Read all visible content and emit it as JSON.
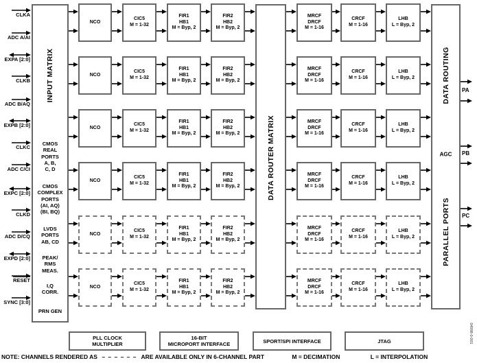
{
  "figure_code": "04998-0-001",
  "left_ports": [
    {
      "label": "CLKA",
      "dir": "in"
    },
    {
      "label": "ADC A/AI",
      "dir": "in"
    },
    {
      "label": "EXPA [2:0]",
      "dir": "bidir"
    },
    {
      "label": "CLKB",
      "dir": "in"
    },
    {
      "label": "ADC B/AQ",
      "dir": "in"
    },
    {
      "label": "EXPB [2:0]",
      "dir": "bidir"
    },
    {
      "label": "CLKC",
      "dir": "in"
    },
    {
      "label": "ADC C/CI",
      "dir": "in"
    },
    {
      "label": "EXPC [2:0]",
      "dir": "bidir"
    },
    {
      "label": "CLKD",
      "dir": "in"
    },
    {
      "label": "ADC D/CQ",
      "dir": "in"
    },
    {
      "label": "EXPD [2:0]",
      "dir": "bidir"
    },
    {
      "label": "RESET",
      "dir": "in",
      "overline": true
    },
    {
      "label": "SYNC [3:0]",
      "dir": "in"
    }
  ],
  "input_matrix": {
    "title": "INPUT MATRIX",
    "sections": [
      "CMOS\nREAL\nPORTS\nA, B,\nC, D",
      "CMOS\nCOMPLEX\nPORTS\n(AI, AQ)\n(BI, BQ)",
      "LVDS\nPORTS\nAB, CD",
      "PEAK/\nRMS\nMEAS.",
      "I,Q\nCORR.",
      "PRN GEN"
    ]
  },
  "router_matrix": {
    "title": "DATA ROUTER MATRIX"
  },
  "output_block": {
    "top": "DATA ROUTING",
    "mid": "AGC",
    "bottom": "PARALLEL PORTS"
  },
  "output_ports": [
    {
      "label": "PA"
    },
    {
      "label": "PB"
    },
    {
      "label": "PC"
    }
  ],
  "chain_blocks": [
    {
      "name": "nco",
      "lines": [
        "NCO"
      ]
    },
    {
      "name": "cic5",
      "lines": [
        "CIC5",
        "M = 1-32"
      ]
    },
    {
      "name": "fir1",
      "lines": [
        "FIR1",
        "HB1",
        "M = Byp, 2"
      ]
    },
    {
      "name": "fir2",
      "lines": [
        "FIR2",
        "HB2",
        "M = Byp, 2"
      ]
    },
    {
      "name": "mrcf",
      "lines": [
        "MRCF",
        "DRCF",
        "M = 1-16"
      ]
    },
    {
      "name": "crcf",
      "lines": [
        "CRCF",
        "M = 1-16"
      ]
    },
    {
      "name": "lhb",
      "lines": [
        "LHB",
        "L = Byp, 2"
      ]
    }
  ],
  "channel_rows": [
    {
      "name": "channel-1",
      "dashed": false
    },
    {
      "name": "channel-2",
      "dashed": false
    },
    {
      "name": "channel-3",
      "dashed": false
    },
    {
      "name": "channel-4",
      "dashed": false
    },
    {
      "name": "channel-5",
      "dashed": true
    },
    {
      "name": "channel-6",
      "dashed": true
    }
  ],
  "bottom_blocks": [
    {
      "name": "pll-clock-multiplier",
      "lines": [
        "PLL CLOCK",
        "MULTIPLIER"
      ]
    },
    {
      "name": "microport-interface",
      "lines": [
        "16-BIT",
        "MICROPORT INTERFACE"
      ]
    },
    {
      "name": "sport-spi-interface",
      "lines": [
        "SPORT/SPI INTERFACE"
      ]
    },
    {
      "name": "jtag",
      "lines": [
        "JTAG"
      ]
    }
  ],
  "note": {
    "prefix": "NOTE: CHANNELS RENDERED AS",
    "dashes": "– – – – – –",
    "suffix": "ARE AVAILABLE ONLY IN 6-CHANNEL PART",
    "legend_m": "M = DECIMATION",
    "legend_l": "L = INTERPOLATION"
  },
  "colors": {
    "border": "#666666",
    "dashed_border": "#777777",
    "ink": "#000000",
    "bg": "#ffffff"
  }
}
